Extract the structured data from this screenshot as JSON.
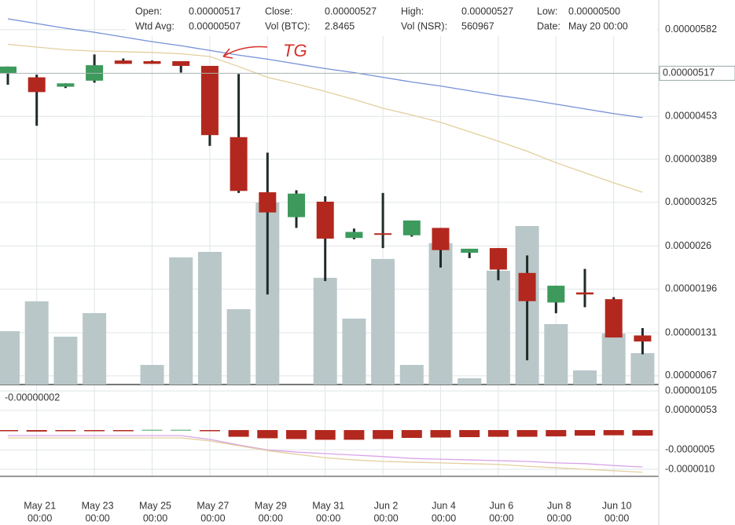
{
  "header": {
    "rows": [
      [
        {
          "label": "Open:",
          "value": "0.00000517"
        },
        {
          "label": "Close:",
          "value": "0.00000527"
        },
        {
          "label": "High:",
          "value": "0.00000527"
        },
        {
          "label": "Low:",
          "value": "0.00000500"
        }
      ],
      [
        {
          "label": "Wtd Avg:",
          "value": "0.00000507"
        },
        {
          "label": "Vol (BTC):",
          "value": "2.8465"
        },
        {
          "label": "Vol (NSR):",
          "value": "560967"
        },
        {
          "label": "Date:",
          "value": "May 20 00:00"
        }
      ]
    ]
  },
  "chart_data": [
    {
      "type": "candlestick",
      "annotation": "TG",
      "categories": [
        null,
        {
          "date": "May 21",
          "time": "00:00"
        },
        null,
        {
          "date": "May 23",
          "time": "00:00"
        },
        null,
        {
          "date": "May 25",
          "time": "00:00"
        },
        null,
        {
          "date": "May 27",
          "time": "00:00"
        },
        null,
        {
          "date": "May 29",
          "time": "00:00"
        },
        null,
        {
          "date": "May 31",
          "time": "00:00"
        },
        null,
        {
          "date": "Jun 2",
          "time": "00:00"
        },
        null,
        {
          "date": "Jun 4",
          "time": "00:00"
        },
        null,
        {
          "date": "Jun 6",
          "time": "00:00"
        },
        null,
        {
          "date": "Jun 8",
          "time": "00:00"
        },
        null,
        {
          "date": "Jun 10",
          "time": "00:00"
        },
        null
      ],
      "open": [
        5.17e-06,
        5.11e-06,
        4.97e-06,
        5.06e-06,
        5.36e-06,
        5.35e-06,
        5.35e-06,
        5.28e-06,
        4.22e-06,
        3.4e-06,
        3.03e-06,
        3.26e-06,
        2.72e-06,
        2.79e-06,
        2.76e-06,
        2.87e-06,
        2.5e-06,
        2.57e-06,
        2.2e-06,
        1.76e-06,
        1.91e-06,
        1.81e-06,
        1.27e-06
      ],
      "high": [
        5.27e-06,
        5.15e-06,
        5.02e-06,
        5.45e-06,
        5.39e-06,
        5.36e-06,
        5.35e-06,
        5.28e-06,
        5.16e-06,
        3.99e-06,
        3.43e-06,
        3.34e-06,
        2.86e-06,
        3.39e-06,
        2.98e-06,
        2.87e-06,
        2.56e-06,
        2.57e-06,
        2.46e-06,
        2.01e-06,
        2.26e-06,
        1.84e-06,
        1.38e-06
      ],
      "low": [
        5e-06,
        4.39e-06,
        4.95e-06,
        5.03e-06,
        5.31e-06,
        5.31e-06,
        5.18e-06,
        4.09e-06,
        3.39e-06,
        1.88e-06,
        2.87e-06,
        2.08e-06,
        2.7e-06,
        2.57e-06,
        2.74e-06,
        2.28e-06,
        2.42e-06,
        2.09e-06,
        9e-07,
        1.6e-06,
        1.69e-06,
        1.24e-06,
        9.9e-07
      ],
      "close": [
        5.27e-06,
        4.89e-06,
        5.02e-06,
        5.29e-06,
        5.31e-06,
        5.31e-06,
        5.28e-06,
        4.25e-06,
        3.42e-06,
        3.1e-06,
        3.38e-06,
        2.71e-06,
        2.81e-06,
        2.78e-06,
        2.98e-06,
        2.54e-06,
        2.56e-06,
        2.25e-06,
        1.78e-06,
        2.01e-06,
        1.88e-06,
        1.24e-06,
        1.18e-06
      ],
      "up_color": "#3d9a5c",
      "down_color": "#b3281e",
      "wick_color": "#1f2b2b",
      "volume": [
        560967,
        874500,
        503250,
        750750,
        0,
        206250,
        1336500,
        1394250,
        792000,
        1914000,
        0,
        1122000,
        693000,
        1320000,
        206250,
        1485000,
        66000,
        1196250,
        1666500,
        635250,
        148500,
        536250,
        330000
      ],
      "volume_color": "#b9c7c9",
      "volume_lim": [
        0,
        4042500
      ],
      "lines": [
        {
          "color": "#7590d8",
          "values": [
            5.98e-06,
            5.91e-06,
            5.84e-06,
            5.78e-06,
            5.71e-06,
            5.64e-06,
            5.58e-06,
            5.51e-06,
            5.44e-06,
            5.38e-06,
            5.31e-06,
            5.24e-06,
            5.18e-06,
            5.11e-06,
            5.04e-06,
            4.98e-06,
            4.91e-06,
            4.84e-06,
            4.78e-06,
            4.71e-06,
            4.64e-06,
            4.57e-06,
            4.51e-06
          ]
        },
        {
          "color": "#e3cf9d",
          "values": [
            5.6e-06,
            5.56e-06,
            5.52e-06,
            5.5e-06,
            5.49e-06,
            5.48e-06,
            5.46e-06,
            5.42e-06,
            5.27e-06,
            5.11e-06,
            5.01e-06,
            4.9e-06,
            4.78e-06,
            4.65e-06,
            4.55e-06,
            4.44e-06,
            4.3e-06,
            4.16e-06,
            4.01e-06,
            3.84e-06,
            3.69e-06,
            3.54e-06,
            3.4e-06
          ]
        }
      ],
      "last_price": 5.17e-06,
      "ylim": [
        5.4e-07,
        6.26e-06
      ],
      "yticks": [
        5.82e-06,
        4.53e-06,
        3.89e-06,
        3.25e-06,
        2.6e-06,
        1.96e-06,
        1.31e-06,
        {
          "value": 6.7e-07,
          "label": "0.00000067"
        }
      ],
      "grid": true
    },
    {
      "type": "histogram_indicator",
      "readout": "-0.00000002",
      "values": [
        -3e-08,
        -4e-08,
        -3e-08,
        -2e-08,
        -1e-08,
        1e-08,
        1e-08,
        -3e-08,
        -1.8e-07,
        -2.2e-07,
        -2.4e-07,
        -2.6e-07,
        -2.6e-07,
        -2.4e-07,
        -2.1e-07,
        -2e-07,
        -1.9e-07,
        -1.8e-07,
        -1.8e-07,
        -1.7e-07,
        -1.5e-07,
        -1.4e-07,
        -1.5e-07
      ],
      "up_color": "#7fc28f",
      "down_color": "#b3281e",
      "lines": [
        {
          "color": "#d9a3e8",
          "values": [
            -1.5e-07,
            -1.5e-07,
            -1.5e-07,
            -1.5e-07,
            -1.5e-07,
            -1.5e-07,
            -1.5e-07,
            -2.5e-07,
            -4e-07,
            -5.3e-07,
            -5.9e-07,
            -6.3e-07,
            -6.7e-07,
            -7.1e-07,
            -7.6e-07,
            -7.8e-07,
            -8e-07,
            -8.2e-07,
            -8.4e-07,
            -8.8e-07,
            -9e-07,
            -9.5e-07,
            -9.9e-07
          ]
        },
        {
          "color": "#e3cf9d",
          "values": [
            -2.1e-07,
            -2.1e-07,
            -2.1e-07,
            -2.1e-07,
            -2.1e-07,
            -2.1e-07,
            -2.1e-07,
            -2.9e-07,
            -4.2e-07,
            -5.5e-07,
            -6.5e-07,
            -7.4e-07,
            -8e-07,
            -8.4e-07,
            -8.6e-07,
            -8.8e-07,
            -9e-07,
            -9.2e-07,
            -9.7e-07,
            -1.01e-06,
            -1.05e-06,
            -1.09e-06,
            -1.13e-06
          ]
        }
      ],
      "ylim": [
        -1.24e-06,
        1.22e-06
      ],
      "yticks": [
        1.05e-06,
        {
          "value": 5.3e-07,
          "label": "0.00000053"
        },
        {
          "value": -5.3e-07,
          "label": "-0.0000005"
        },
        {
          "value": -1.05e-06,
          "label": "-0.0000010"
        }
      ],
      "grid": true
    }
  ]
}
